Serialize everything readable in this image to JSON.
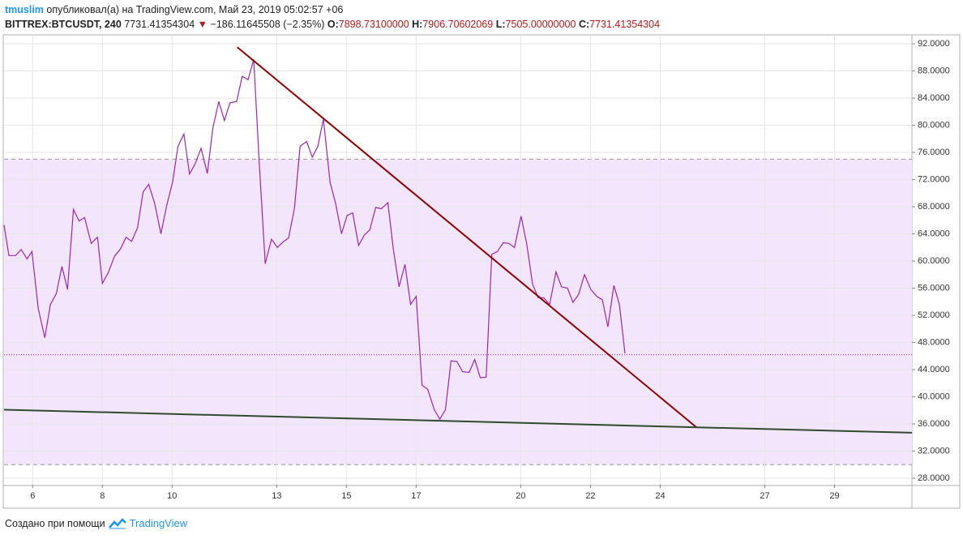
{
  "header": {
    "author": "tmuslim",
    "published": "опубликовал(а) на TradingView.com, Май 23, 2019 05:02:57 +06",
    "symbol": "BITTREX:BTCUSDT, 240",
    "price": "7731.41354304",
    "arrow": "▼",
    "change": "−186.11645508 (−2.35%)",
    "open_label": "O:",
    "open": "7898.73100000",
    "high_label": "H:",
    "high": "7906.70602069",
    "low_label": "L:",
    "low": "7505.00000000",
    "close_label": "C:",
    "close": "7731.41354304"
  },
  "footer": {
    "text": "Создано при помощи",
    "brand": "TradingView"
  },
  "chart_data": {
    "type": "line",
    "color": "#9c27b0",
    "grid": true,
    "x": [
      5.18,
      5.32,
      5.51,
      5.67,
      5.84,
      5.98,
      6.16,
      6.35,
      6.51,
      6.68,
      6.84,
      7.0,
      7.17,
      7.33,
      7.49,
      7.68,
      7.86,
      8.0,
      8.17,
      8.35,
      8.52,
      8.68,
      8.84,
      9.01,
      9.17,
      9.33,
      9.5,
      9.68,
      9.85,
      10.01,
      10.17,
      10.34,
      10.5,
      10.66,
      10.83,
      11.01,
      11.17,
      11.34,
      11.5,
      11.66,
      11.85,
      12.01,
      12.18,
      12.34,
      12.5,
      12.67,
      12.85,
      13.02,
      13.18,
      13.34,
      13.51,
      13.67,
      13.86,
      14.02,
      14.18,
      14.34,
      14.53,
      14.69,
      14.86,
      15.02,
      15.18,
      15.35,
      15.51,
      15.67,
      15.84,
      16.0,
      16.19,
      16.35,
      16.51,
      16.68,
      16.84,
      17.0,
      17.17,
      17.33,
      17.52,
      17.68,
      17.84,
      18.0,
      18.17,
      18.33,
      18.52,
      18.68,
      18.84,
      19.01,
      19.17,
      19.33,
      19.5,
      19.66,
      19.82,
      20.01,
      20.17,
      20.34,
      20.5,
      20.66,
      20.83,
      21.01,
      21.17,
      21.34,
      21.5,
      21.66,
      21.83,
      22.01,
      22.18,
      22.34,
      22.5,
      22.67,
      22.83,
      22.99
    ],
    "values": [
      65.3,
      60.8,
      60.8,
      61.7,
      60.3,
      61.4,
      53.0,
      48.7,
      53.6,
      55.2,
      59.2,
      55.8,
      67.6,
      65.9,
      66.4,
      62.6,
      63.5,
      56.7,
      58.3,
      60.7,
      61.8,
      63.5,
      62.9,
      64.9,
      70.2,
      71.3,
      68.5,
      64.0,
      68.3,
      71.5,
      76.9,
      78.7,
      72.8,
      74.3,
      76.6,
      72.9,
      79.6,
      83.5,
      80.7,
      83.3,
      83.5,
      87.2,
      86.7,
      89.7,
      74.5,
      59.6,
      63.2,
      62.0,
      62.8,
      63.4,
      67.8,
      76.9,
      77.6,
      75.3,
      76.9,
      80.9,
      71.6,
      68.5,
      64.0,
      66.7,
      67.1,
      62.3,
      63.8,
      64.6,
      67.9,
      67.7,
      68.6,
      61.6,
      56.2,
      59.5,
      53.6,
      54.8,
      41.7,
      41.1,
      38.1,
      36.7,
      38.1,
      45.3,
      45.2,
      43.7,
      43.6,
      45.5,
      42.8,
      42.9,
      61.0,
      61.4,
      62.7,
      62.6,
      62.0,
      66.6,
      62.6,
      56.6,
      54.6,
      54.6,
      53.6,
      58.4,
      56.2,
      56.0,
      53.9,
      55.1,
      58.0,
      55.8,
      54.8,
      54.3,
      50.3,
      56.4,
      53.6,
      46.4
    ],
    "xlim": [
      5.18,
      31.22
    ],
    "xticks": [
      6,
      8,
      10,
      13,
      15,
      17,
      20,
      22,
      24,
      27,
      29
    ],
    "ylim": [
      27.05,
      93.2
    ],
    "yticks": [
      {
        "value": 28,
        "label": "28.0000"
      },
      {
        "value": 32,
        "label": "32.0000"
      },
      {
        "value": 36,
        "label": "36.0000"
      },
      {
        "value": 40,
        "label": "40.0000"
      },
      {
        "value": 44,
        "label": "44.0000"
      },
      {
        "value": 48,
        "label": "48.0000"
      },
      {
        "value": 52,
        "label": "52.0000"
      },
      {
        "value": 56,
        "label": "56.0000"
      },
      {
        "value": 60,
        "label": "60.0000"
      },
      {
        "value": 64,
        "label": "64.0000"
      },
      {
        "value": 68,
        "label": "68.0000"
      },
      {
        "value": 72,
        "label": "72.0000"
      },
      {
        "value": 76,
        "label": "76.0000"
      },
      {
        "value": 80,
        "label": "80.0000"
      },
      {
        "value": 84,
        "label": "84.0000"
      },
      {
        "value": 88,
        "label": "88.0000"
      },
      {
        "value": 92,
        "label": "92.0000"
      }
    ],
    "bands": [
      {
        "from": 30,
        "to": 75,
        "color": "#f3e5fc"
      }
    ],
    "hline": {
      "value": 46.2,
      "color": "#9c27b0"
    },
    "trend_lines": [
      {
        "x": [
          11.87,
          25.04
        ],
        "y": [
          91.5,
          35.5
        ],
        "color": "#8b0000"
      },
      {
        "x": [
          5.18,
          31.22
        ],
        "y": [
          38.1,
          34.7
        ],
        "color": "#2f4a2f"
      }
    ]
  }
}
